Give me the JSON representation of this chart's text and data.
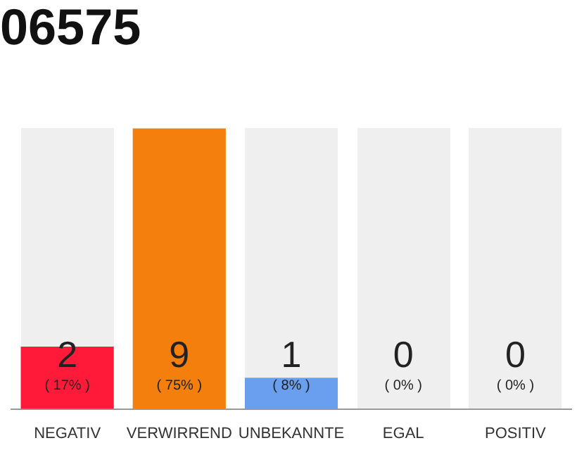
{
  "chart_data": {
    "type": "bar",
    "title": "06575",
    "categories": [
      "NEGATIV",
      "VERWIRREND",
      "UNBEKANNTE",
      "EGAL",
      "POSITIV"
    ],
    "values": [
      2,
      9,
      1,
      0,
      0
    ],
    "colors": [
      "#ff1a3a",
      "#f57f0c",
      "#6a9ff0",
      "#cccccc",
      "#cccccc"
    ],
    "value_labels": [
      "2\n( 17% )",
      "9\n( 75% )",
      "1\n( 8% )",
      "0\n( 0% )",
      "0\n( 0% )"
    ],
    "ylim": [
      0,
      9
    ],
    "grid": false,
    "legend": false,
    "tick_labels": "x"
  }
}
